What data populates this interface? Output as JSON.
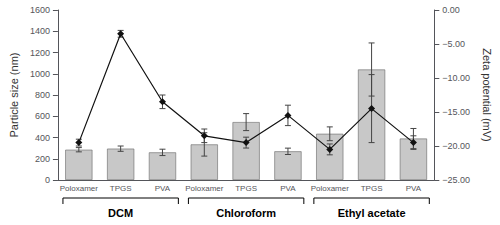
{
  "chart_data": {
    "type": "bar",
    "categories": [
      "Poloxamer",
      "TPGS",
      "PVA",
      "Poloxamer",
      "TPGS",
      "PVA",
      "Poloxamer",
      "TPGS",
      "PVA"
    ],
    "series": [
      {
        "type": "bar",
        "color": "#c8c8c8",
        "values": [
          285,
          295,
          260,
          335,
          545,
          270,
          435,
          1040,
          390
        ],
        "errors": [
          20,
          25,
          30,
          110,
          80,
          30,
          65,
          250,
          95
        ]
      },
      {
        "type": "line",
        "axis": "y2",
        "color": "#111111",
        "marker": "diamond",
        "values": [
          -19.5,
          -3.5,
          -13.5,
          -18.5,
          -19.5,
          -15.5,
          -20.5,
          -14.5,
          -19.5
        ],
        "errors": [
          0.5,
          0.5,
          1.0,
          1.0,
          0.8,
          1.5,
          0.8,
          5.0,
          1.0
        ]
      }
    ],
    "ylabel": "Particle size (nm)",
    "ylim": [
      0,
      1600
    ],
    "yticks": [
      0,
      200,
      400,
      600,
      800,
      1000,
      1200,
      1400,
      1600
    ],
    "y2label": "Zeta potential (mV)",
    "y2lim": [
      -25,
      0
    ],
    "y2ticks": [
      {
        "value": 0,
        "label": "0.00"
      },
      {
        "value": -5,
        "label": "−5.00"
      },
      {
        "value": -10,
        "label": "−10.00"
      },
      {
        "value": -15,
        "label": "−15.00"
      },
      {
        "value": -20,
        "label": "−20.00"
      },
      {
        "value": -25,
        "label": "−25.00"
      }
    ],
    "groups": [
      {
        "label": "DCM",
        "first": 0,
        "last": 2
      },
      {
        "label": "Chloroform",
        "first": 3,
        "last": 5
      },
      {
        "label": "Ethyl acetate",
        "first": 6,
        "last": 8
      }
    ],
    "grid": false
  }
}
